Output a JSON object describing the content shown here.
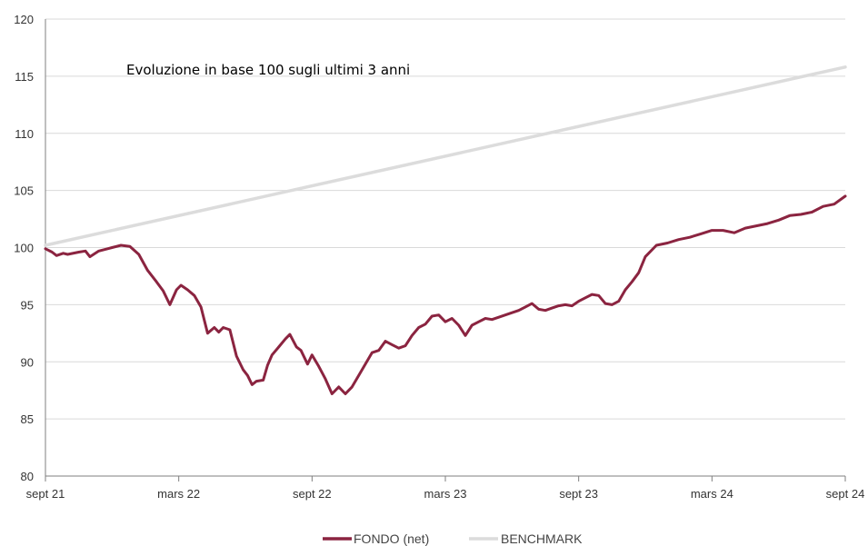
{
  "chart_data": {
    "type": "line",
    "title": "Evoluzione in base 100 sugli ultimi 3 anni",
    "xlabel": "",
    "ylabel": "",
    "x_ticks": [
      "sept 21",
      "mars 22",
      "sept 22",
      "mars 23",
      "sept 23",
      "mars 24",
      "sept 24"
    ],
    "y_ticks": [
      80,
      85,
      90,
      95,
      100,
      105,
      110,
      115,
      120
    ],
    "ylim": [
      80,
      120
    ],
    "xlim": [
      0,
      36
    ],
    "grid": "horizontal",
    "legend_position": "bottom-center",
    "colors": {
      "fondo": "#8b2440",
      "benchmark": "#dcdcdc",
      "grid": "#d9d9d9",
      "axis": "#7f7f7f"
    },
    "series": [
      {
        "name": "FONDO (net)",
        "x": [
          0,
          0.3,
          0.5,
          0.8,
          1.0,
          1.5,
          1.8,
          2.0,
          2.4,
          2.8,
          3.0,
          3.4,
          3.8,
          4.2,
          4.6,
          5.0,
          5.3,
          5.6,
          5.9,
          6.1,
          6.4,
          6.7,
          7.0,
          7.3,
          7.6,
          7.8,
          8.0,
          8.3,
          8.6,
          8.9,
          9.1,
          9.3,
          9.5,
          9.8,
          10.0,
          10.2,
          10.5,
          10.8,
          11.0,
          11.3,
          11.5,
          11.8,
          12.0,
          12.3,
          12.6,
          12.9,
          13.2,
          13.5,
          13.8,
          14.1,
          14.4,
          14.7,
          15.0,
          15.3,
          15.6,
          15.9,
          16.2,
          16.5,
          16.8,
          17.1,
          17.4,
          17.7,
          18.0,
          18.3,
          18.6,
          18.9,
          19.2,
          19.5,
          19.8,
          20.1,
          20.4,
          20.7,
          21.0,
          21.3,
          21.6,
          21.9,
          22.2,
          22.5,
          22.8,
          23.1,
          23.4,
          23.7,
          24.0,
          24.3,
          24.6,
          24.9,
          25.2,
          25.5,
          25.8,
          26.1,
          26.4,
          26.7,
          27.0,
          27.5,
          28.0,
          28.5,
          29.0,
          29.5,
          30.0,
          30.5,
          31.0,
          31.5,
          32.0,
          32.5,
          33.0,
          33.5,
          34.0,
          34.5,
          35.0,
          35.5,
          36.0
        ],
        "values": [
          99.9,
          99.6,
          99.3,
          99.5,
          99.4,
          99.6,
          99.7,
          99.2,
          99.7,
          99.9,
          100.0,
          100.2,
          100.1,
          99.4,
          98.0,
          97.0,
          96.2,
          95.0,
          96.3,
          96.7,
          96.3,
          95.8,
          94.8,
          92.5,
          93.0,
          92.6,
          93.0,
          92.8,
          90.5,
          89.3,
          88.8,
          88.0,
          88.3,
          88.4,
          89.7,
          90.6,
          91.3,
          92.0,
          92.4,
          91.3,
          91.0,
          89.8,
          90.6,
          89.6,
          88.5,
          87.2,
          87.8,
          87.2,
          87.8,
          88.8,
          89.8,
          90.8,
          91.0,
          91.8,
          91.5,
          91.2,
          91.4,
          92.3,
          93.0,
          93.3,
          94.0,
          94.1,
          93.5,
          93.8,
          93.2,
          92.3,
          93.2,
          93.5,
          93.8,
          93.7,
          93.9,
          94.1,
          94.3,
          94.5,
          94.8,
          95.1,
          94.6,
          94.5,
          94.7,
          94.9,
          95.0,
          94.9,
          95.3,
          95.6,
          95.9,
          95.8,
          95.1,
          95.0,
          95.3,
          96.3,
          97.0,
          97.8,
          99.2,
          100.2,
          100.4,
          100.7,
          100.9,
          101.2,
          101.5,
          101.5,
          101.3,
          101.7,
          101.9,
          102.1,
          102.4,
          102.8,
          102.9,
          103.1,
          103.6,
          103.8,
          104.5
        ]
      },
      {
        "name": "BENCHMARK",
        "x": [
          0,
          36
        ],
        "values": [
          100.2,
          115.8
        ]
      }
    ]
  }
}
